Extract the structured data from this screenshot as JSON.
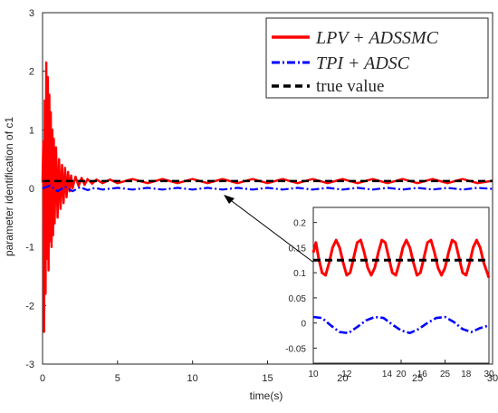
{
  "chart_data": [
    {
      "type": "line",
      "title": "",
      "xlabel": "time(s)",
      "ylabel": "parameter identification of c1",
      "xlim": [
        0,
        30
      ],
      "ylim": [
        -3,
        3
      ],
      "xticks": [
        0,
        5,
        10,
        15,
        20,
        25,
        30
      ],
      "yticks": [
        -3,
        -2,
        -1,
        0,
        1,
        2,
        3
      ],
      "grid": false,
      "legend_position": "top-right",
      "series": [
        {
          "name": "LPV + ADSSMC",
          "color": "#ff0000",
          "style": "solid",
          "x": [
            0,
            0.05,
            0.1,
            0.15,
            0.2,
            0.25,
            0.3,
            0.35,
            0.4,
            0.45,
            0.5,
            0.55,
            0.6,
            0.65,
            0.7,
            0.75,
            0.8,
            0.9,
            1.0,
            1.1,
            1.2,
            1.3,
            1.4,
            1.5,
            1.6,
            1.7,
            1.8,
            1.9,
            2.0,
            2.2,
            2.4,
            2.6,
            2.8,
            3.0,
            3.3,
            3.6,
            4.0,
            4.5,
            5.0,
            6.0,
            7.0,
            8.0,
            9.0,
            10.0,
            11.0,
            12.0,
            13.0,
            14.0,
            15.0,
            16.0,
            17.0,
            18.0,
            19.0,
            20.0,
            21.0,
            22.0,
            23.0,
            24.0,
            25.0,
            26.0,
            27.0,
            28.0,
            29.0,
            30.0
          ],
          "y": [
            0.1,
            0.8,
            -2.45,
            1.5,
            -1.8,
            2.15,
            -1.2,
            1.9,
            -1.4,
            1.6,
            -0.9,
            1.3,
            -1.0,
            1.0,
            -0.8,
            0.85,
            -0.6,
            0.7,
            -0.5,
            0.5,
            -0.35,
            0.4,
            -0.25,
            0.35,
            -0.15,
            0.28,
            -0.05,
            0.22,
            0.0,
            0.2,
            0.04,
            0.18,
            0.06,
            0.16,
            0.08,
            0.15,
            0.09,
            0.15,
            0.09,
            0.16,
            0.09,
            0.16,
            0.09,
            0.16,
            0.09,
            0.16,
            0.09,
            0.16,
            0.09,
            0.16,
            0.09,
            0.16,
            0.09,
            0.16,
            0.09,
            0.16,
            0.09,
            0.16,
            0.09,
            0.16,
            0.09,
            0.16,
            0.09,
            0.13
          ]
        },
        {
          "name": "TPI + ADSC",
          "color": "#0000ff",
          "style": "dashdot",
          "x": [
            0,
            0.5,
            1.0,
            1.5,
            2.0,
            2.5,
            3.0,
            3.5,
            4.0,
            5.0,
            6.0,
            7.0,
            8.0,
            9.0,
            10.0,
            11.0,
            12.0,
            13.0,
            14.0,
            15.0,
            16.0,
            17.0,
            18.0,
            19.0,
            20.0,
            21.0,
            22.0,
            23.0,
            24.0,
            25.0,
            26.0,
            27.0,
            28.0,
            29.0,
            30.0
          ],
          "y": [
            0.0,
            0.05,
            -0.05,
            0.03,
            -0.05,
            0.02,
            -0.03,
            0.01,
            -0.02,
            0.01,
            -0.02,
            0.01,
            -0.02,
            0.01,
            -0.02,
            0.01,
            -0.02,
            0.01,
            -0.02,
            0.01,
            -0.02,
            0.01,
            -0.02,
            0.01,
            -0.02,
            0.01,
            -0.02,
            0.01,
            -0.02,
            0.01,
            -0.02,
            0.01,
            -0.02,
            0.01,
            -0.01
          ]
        },
        {
          "name": "true value",
          "color": "#000000",
          "style": "dashed",
          "x": [
            0,
            30
          ],
          "y": [
            0.125,
            0.125
          ]
        }
      ]
    },
    {
      "type": "line",
      "title": "",
      "xlabel": "",
      "ylabel": "",
      "role": "inset zoom",
      "xlim": [
        10,
        30
      ],
      "ylim": [
        -0.08,
        0.23
      ],
      "xtick_labels": [
        "10",
        "20",
        "25",
        "30"
      ],
      "xtick_values": [
        10,
        20,
        25,
        30
      ],
      "extra_tick_labels": [
        "12",
        "14",
        "16",
        "18"
      ],
      "yticks": [
        -0.05,
        0,
        0.05,
        0.1,
        0.15,
        0.2
      ],
      "ytick_labels": [
        "-0.05",
        "0",
        "0.05",
        "0.1",
        "0.15",
        "0.2"
      ],
      "grid": false,
      "series": [
        {
          "name": "LPV + ADSSMC",
          "color": "#ff0000",
          "style": "solid",
          "x": [
            10,
            10.3,
            10.6,
            11.0,
            11.4,
            11.8,
            12.2,
            12.6,
            13.0,
            13.4,
            13.8,
            14.2,
            14.6,
            15.0,
            15.4,
            15.8,
            16.2,
            16.6,
            17.0,
            17.4,
            17.8,
            18.2,
            18.6,
            19.0,
            19.4,
            19.8,
            20.2,
            20.6,
            21.0,
            21.4,
            21.8,
            22.2,
            22.6,
            23.0,
            23.4,
            23.8,
            24.2,
            24.6,
            25.0,
            25.4,
            25.8,
            26.2,
            26.6,
            27.0,
            27.4,
            27.8,
            28.2,
            28.6,
            29.0,
            29.4,
            29.8,
            30.0
          ],
          "y": [
            0.14,
            0.16,
            0.13,
            0.1,
            0.095,
            0.12,
            0.15,
            0.165,
            0.15,
            0.12,
            0.095,
            0.1,
            0.13,
            0.16,
            0.165,
            0.14,
            0.11,
            0.095,
            0.11,
            0.14,
            0.165,
            0.16,
            0.13,
            0.1,
            0.095,
            0.12,
            0.15,
            0.165,
            0.15,
            0.12,
            0.095,
            0.1,
            0.13,
            0.16,
            0.165,
            0.14,
            0.11,
            0.095,
            0.11,
            0.14,
            0.165,
            0.16,
            0.13,
            0.1,
            0.095,
            0.12,
            0.15,
            0.165,
            0.15,
            0.12,
            0.1,
            0.09
          ]
        },
        {
          "name": "TPI + ADSC",
          "color": "#0000ff",
          "style": "dashdot",
          "x": [
            10,
            11.0,
            12.0,
            13.0,
            14.0,
            15.0,
            16.0,
            17.0,
            18.0,
            19.0,
            20.0,
            21.0,
            22.0,
            23.0,
            24.0,
            25.0,
            26.0,
            27.0,
            28.0,
            29.0,
            30.0
          ],
          "y": [
            0.012,
            0.01,
            -0.005,
            -0.018,
            -0.02,
            -0.008,
            0.005,
            0.012,
            0.01,
            -0.003,
            -0.015,
            -0.02,
            -0.012,
            0.0,
            0.01,
            0.012,
            0.002,
            -0.012,
            -0.018,
            -0.01,
            -0.005
          ]
        },
        {
          "name": "true value",
          "color": "#000000",
          "style": "dashed",
          "x": [
            10,
            30
          ],
          "y": [
            0.125,
            0.125
          ]
        }
      ]
    }
  ],
  "legend": {
    "items": [
      {
        "label": "LPV + ADSSMC",
        "style": "math"
      },
      {
        "label": "TPI + ADSC",
        "style": "math"
      },
      {
        "label": "true value",
        "style": "plain"
      }
    ]
  },
  "axes_text": {
    "xlabel": "time(s)",
    "ylabel": "parameter identification of c1"
  }
}
